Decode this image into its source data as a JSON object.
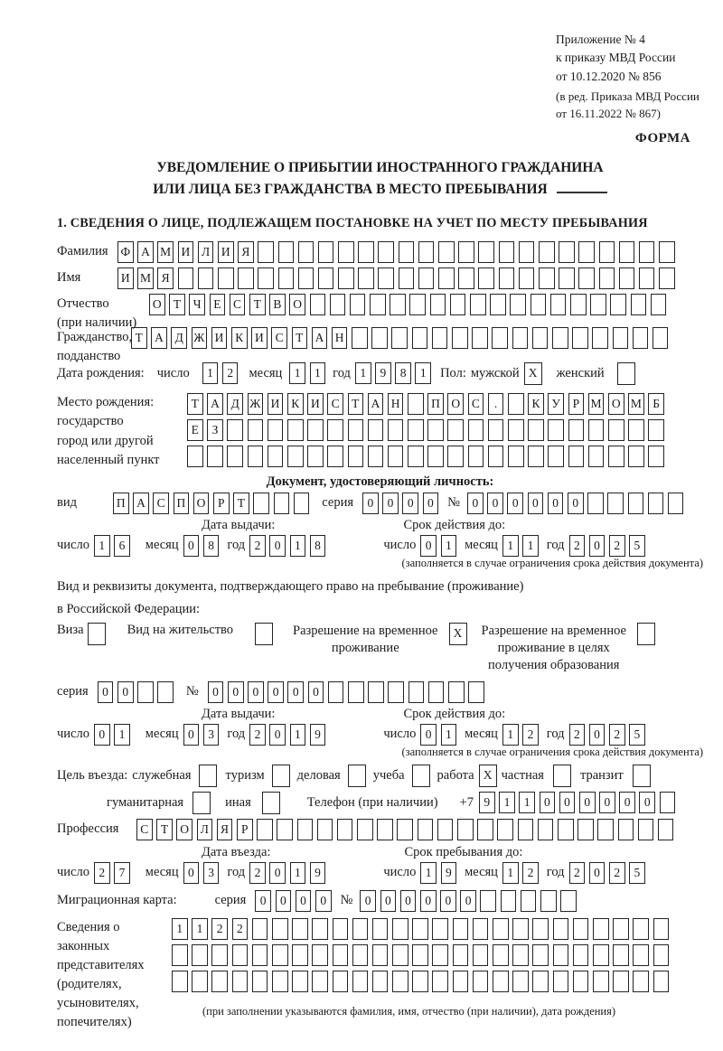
{
  "page": {
    "annex_lines": [
      "Приложение № 4",
      "к приказу МВД России",
      "от 10.12.2020 № 856"
    ],
    "amendment_lines": [
      "(в ред. Приказа МВД России",
      "от 16.11.2022 № 867)"
    ],
    "form_label": "ФОРМА",
    "title_line1": "УВЕДОМЛЕНИЕ О ПРИБЫТИИ ИНОСТРАННОГО ГРАЖДАНИНА",
    "title_line2": "ИЛИ ЛИЦА БЕЗ ГРАЖДАНСТВА В МЕСТО ПРЕБЫВАНИЯ",
    "section1_heading": "1. СВЕДЕНИЯ О ЛИЦЕ, ПОДЛЕЖАЩЕМ ПОСТАНОВКЕ НА УЧЕТ ПО МЕСТУ ПРЕБЫВАНИЯ"
  },
  "date_labels": {
    "day": "число",
    "month": "месяц",
    "year": "год"
  },
  "person": {
    "surname": {
      "label": "Фамилия",
      "value": "ФАМИЛИЯ",
      "boxes": 28
    },
    "given_name": {
      "label": "Имя",
      "value": "ИМЯ",
      "boxes": 28
    },
    "patronymic": {
      "label": "Отчество",
      "label2": "(при наличии)",
      "value": "ОТЧЕСТВО",
      "boxes": 26
    },
    "citizenship": {
      "label": "Гражданство,",
      "label2": "подданство",
      "value": "ТАДЖИКИСТАН",
      "boxes": 27
    },
    "birth_date": {
      "label": "Дата рождения:",
      "day": "12",
      "month": "11",
      "year": "1981"
    },
    "sex": {
      "label": "Пол:",
      "male_label": "мужской",
      "male_mark": "X",
      "female_label": "женский",
      "female_mark": " "
    },
    "birth_place": {
      "labels": [
        "Место рождения:",
        "государство",
        "город или другой",
        "населенный пункт"
      ],
      "row1": {
        "value": "ТАДЖИКИСТАН ПОС. КУРМОМБ",
        "boxes": 24
      },
      "row2": {
        "value": "ЕЗ",
        "boxes": 24
      },
      "row3": {
        "value": "",
        "boxes": 24
      }
    }
  },
  "identity_doc": {
    "heading": "Документ, удостоверяющий личность:",
    "kind": {
      "label": "вид",
      "value": "ПАСПОРТ",
      "boxes": 10
    },
    "series": {
      "label": "серия",
      "value": "0000",
      "boxes": 4
    },
    "number": {
      "label": "№",
      "value": "000000",
      "boxes": 11
    },
    "issue": {
      "title": "Дата выдачи:",
      "day": "16",
      "month": "08",
      "year": "2018"
    },
    "valid": {
      "title": "Срок действия до:",
      "day": "01",
      "month": "11",
      "year": "2025"
    },
    "note": "(заполняется в случае ограничения срока действия документа)"
  },
  "residence_doc": {
    "intro_line1": "Вид и реквизиты документа, подтверждающего право на пребывание (проживание)",
    "intro_line2": "в Российской Федерации:",
    "options": [
      {
        "label": "Виза",
        "mark": " "
      },
      {
        "label": "Вид на жительство",
        "mark": " "
      },
      {
        "lines": [
          "Разрешение на временное",
          "проживание"
        ],
        "mark": "X"
      },
      {
        "lines": [
          "Разрешение на временное",
          "проживание в целях",
          "получения образования"
        ],
        "mark": " "
      }
    ],
    "series": {
      "label": "серия",
      "value": "00",
      "boxes": 4
    },
    "number": {
      "label": "№",
      "value": "000000",
      "boxes": 14
    },
    "issue": {
      "title": "Дата выдачи:",
      "day": "01",
      "month": "03",
      "year": "2019"
    },
    "valid": {
      "title": "Срок действия до:",
      "day": "01",
      "month": "12",
      "year": "2025"
    },
    "note": "(заполняется в случае ограничения срока действия документа)"
  },
  "visit": {
    "purpose_label": "Цель въезда:",
    "purposes_row1": [
      {
        "label": "служебная",
        "mark": " "
      },
      {
        "label": "туризм",
        "mark": " "
      },
      {
        "label": "деловая",
        "mark": " "
      },
      {
        "label": "учеба",
        "mark": " "
      },
      {
        "label": "работа",
        "mark": "X"
      },
      {
        "label": "частная",
        "mark": " "
      },
      {
        "label": "транзит",
        "mark": " "
      }
    ],
    "purposes_row2": [
      {
        "label": "гуманитарная",
        "mark": " "
      },
      {
        "label": "иная",
        "mark": " "
      }
    ],
    "phone": {
      "label": "Телефон (при наличии)",
      "prefix": "+7",
      "value": "911000000",
      "boxes": 10
    },
    "profession": {
      "label": "Профессия",
      "value": "СТОЛЯР",
      "boxes": 27
    },
    "entry": {
      "title": "Дата въезда:",
      "day": "27",
      "month": "03",
      "year": "2019"
    },
    "stay": {
      "title": "Срок пребывания до:",
      "day": "19",
      "month": "12",
      "year": "2025"
    },
    "migration_card": {
      "label": "Миграционная карта:",
      "series_label": "серия",
      "series": {
        "value": "0000",
        "boxes": 4
      },
      "number_label": "№",
      "number": {
        "value": "000000",
        "boxes": 11
      }
    }
  },
  "representatives": {
    "labels": [
      "Сведения о",
      "законных",
      "представителях",
      "(родителях,",
      "усыновителях,",
      "попечителях)"
    ],
    "row1": {
      "value": "1122",
      "boxes": 25
    },
    "row2": {
      "value": "",
      "boxes": 25
    },
    "row3": {
      "value": "",
      "boxes": 25
    },
    "note": "(при заполнении указываются фамилия, имя, отчество (при наличии), дата рождения)"
  }
}
